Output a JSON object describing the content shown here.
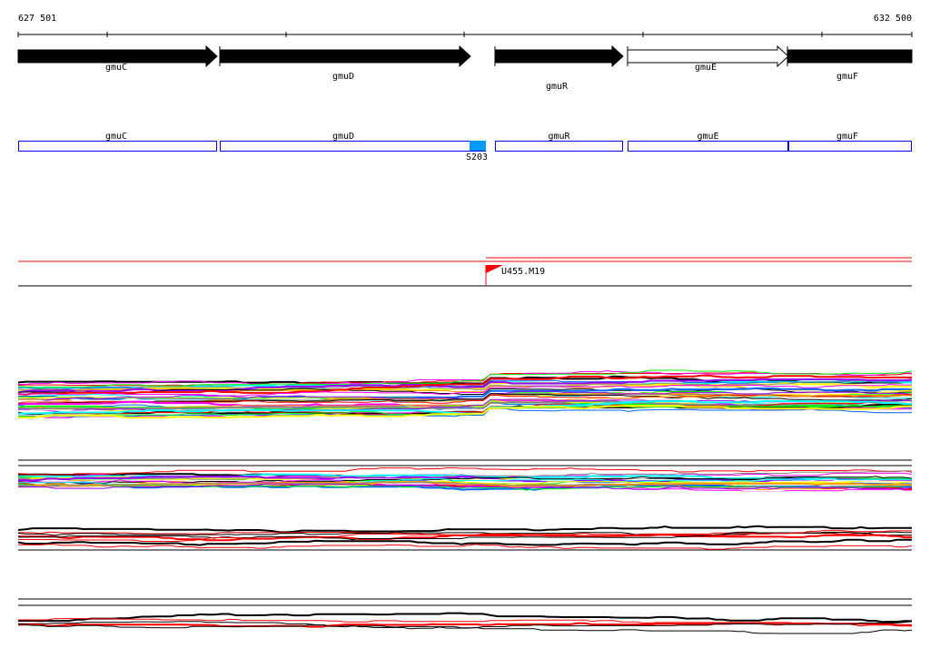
{
  "ruler": {
    "start_label": "627 501",
    "end_label": "632 500"
  },
  "genes": [
    {
      "name": "gmuC",
      "strand": "+",
      "filled": true
    },
    {
      "name": "gmuD",
      "strand": "+",
      "filled": true
    },
    {
      "name": "gmuR",
      "strand": "+",
      "filled": true
    },
    {
      "name": "gmuE",
      "strand": "+",
      "filled": false
    },
    {
      "name": "gmuF",
      "strand": "+",
      "filled": true
    }
  ],
  "annotation_boxes": [
    {
      "name": "gmuC"
    },
    {
      "name": "gmuD"
    },
    {
      "name": "gmuR"
    },
    {
      "name": "gmuE"
    },
    {
      "name": "gmuF"
    }
  ],
  "feature": {
    "label": "S203",
    "color": "#0099ff"
  },
  "marker": {
    "label": "U455.M19",
    "color": "#ff0000",
    "icon": "flag-icon"
  },
  "colors": {
    "gene": "#000000",
    "annotation_box": "#0000ee",
    "track_palette": [
      "#000000",
      "#ff0000",
      "#ff00ff",
      "#00ffff",
      "#0066ff",
      "#00ff00",
      "#ffff00",
      "#ff9900",
      "#888888",
      "#9900ff",
      "#ffffff"
    ],
    "track_palette_rb": [
      "#000000",
      "#ff0000"
    ]
  }
}
